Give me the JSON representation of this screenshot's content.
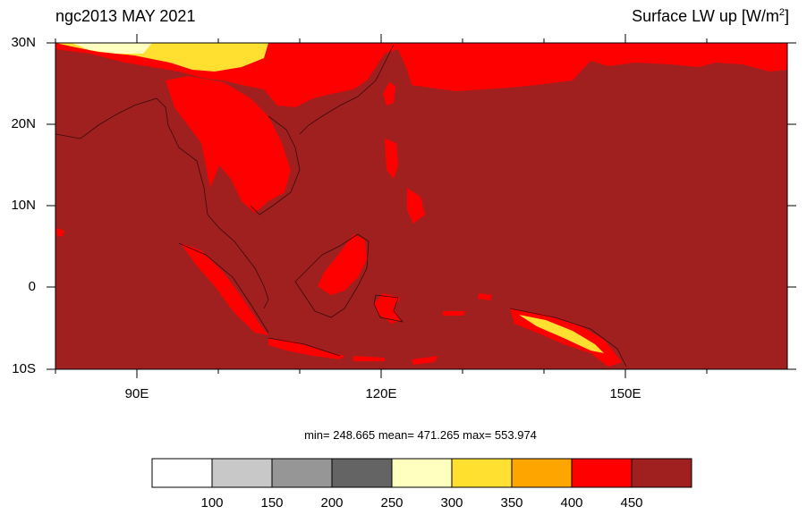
{
  "title_left": "ngc2013 MAY 2021",
  "title_right": {
    "text": "Surface LW up [W/m",
    "sup": "2",
    "close": "]"
  },
  "axes": {
    "lat_labels": [
      "30N",
      "20N",
      "10N",
      "0",
      "10S"
    ],
    "lat_values": [
      30,
      20,
      10,
      0,
      -10
    ],
    "lon_labels": [
      "90E",
      "120E",
      "150E"
    ],
    "lon_values": [
      90,
      120,
      150
    ],
    "lon_range": [
      80,
      170
    ],
    "lat_range": [
      -10,
      30
    ]
  },
  "stats_text": "min= 248.665   mean= 471.265   max= 553.974",
  "colorbar": {
    "labels": [
      "100",
      "150",
      "200",
      "250",
      "300",
      "350",
      "400",
      "450"
    ],
    "colors": [
      "#ffffff",
      "#c8c8c8",
      "#969696",
      "#646464",
      "#ffffc0",
      "#ffe030",
      "#ffa500",
      "#ff0000",
      "#a02020"
    ]
  }
}
